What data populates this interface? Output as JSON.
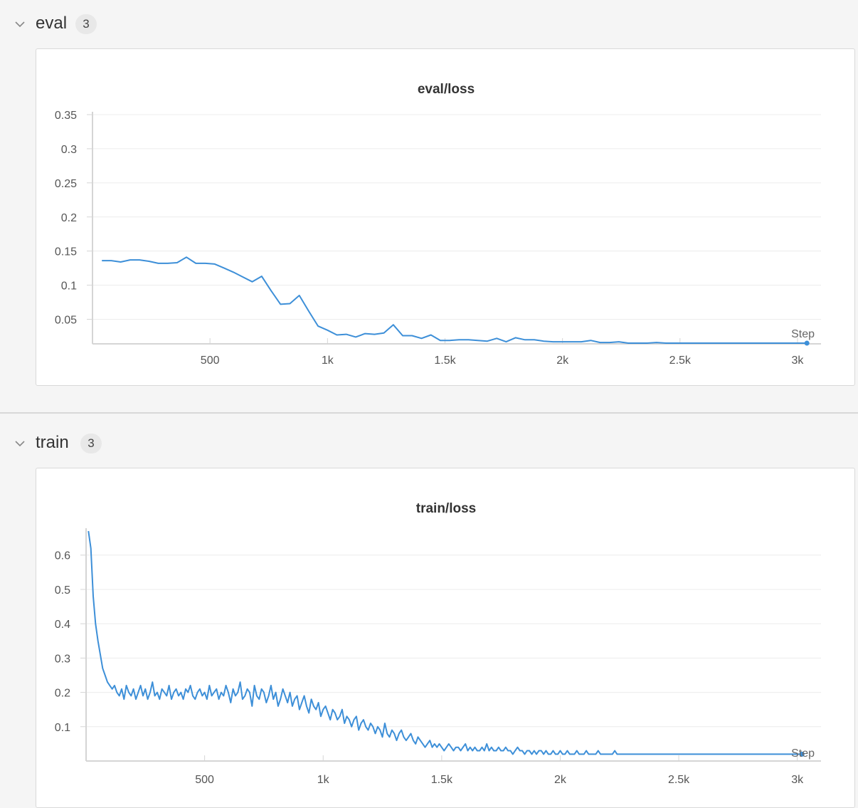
{
  "sections": [
    {
      "title": "eval",
      "count": "3"
    },
    {
      "title": "train",
      "count": "3"
    }
  ],
  "colors": {
    "line": "#3d8fd8",
    "grid": "#ececec",
    "axis": "#d5d5d5"
  },
  "icons": {
    "collapse": "chevron-down-icon"
  },
  "chart_data": [
    {
      "type": "line",
      "title": "eval/loss",
      "xlabel": "Step",
      "ylabel": "",
      "xlim": [
        0,
        3100
      ],
      "ylim": [
        0.014,
        0.35
      ],
      "yticks": [
        0.05,
        0.1,
        0.15,
        0.2,
        0.25,
        0.3,
        0.35
      ],
      "ytick_labels": [
        "0.05",
        "0.1",
        "0.15",
        "0.2",
        "0.25",
        "0.3",
        "0.35"
      ],
      "xticks": [
        500,
        1000,
        1500,
        2000,
        2500,
        3000
      ],
      "xtick_labels": [
        "500",
        "1k",
        "1.5k",
        "2k",
        "2.5k",
        "3k"
      ],
      "grid": true,
      "series": [
        {
          "x": [
            40,
            80,
            120,
            160,
            200,
            240,
            280,
            320,
            360,
            400,
            440,
            480,
            520,
            560,
            600,
            640,
            680,
            720,
            760,
            800,
            840,
            880,
            920,
            960,
            1000,
            1040,
            1080,
            1120,
            1160,
            1200,
            1240,
            1280,
            1320,
            1360,
            1400,
            1440,
            1480,
            1520,
            1560,
            1600,
            1640,
            1680,
            1720,
            1760,
            1800,
            1840,
            1880,
            1920,
            1960,
            2000,
            2040,
            2080,
            2120,
            2160,
            2200,
            2240,
            2280,
            2320,
            2360,
            2400,
            2440,
            2480,
            2520,
            2560,
            2600,
            2640,
            2680,
            2720,
            2760,
            2800,
            2840,
            2880,
            2920,
            2960,
            3000,
            3040
          ],
          "y": [
            0.136,
            0.136,
            0.134,
            0.137,
            0.137,
            0.135,
            0.132,
            0.132,
            0.133,
            0.141,
            0.132,
            0.132,
            0.131,
            0.125,
            0.119,
            0.112,
            0.105,
            0.113,
            0.092,
            0.072,
            0.073,
            0.085,
            0.062,
            0.04,
            0.034,
            0.027,
            0.028,
            0.024,
            0.029,
            0.028,
            0.03,
            0.042,
            0.026,
            0.026,
            0.022,
            0.027,
            0.019,
            0.019,
            0.02,
            0.02,
            0.019,
            0.018,
            0.022,
            0.017,
            0.023,
            0.02,
            0.02,
            0.018,
            0.017,
            0.017,
            0.017,
            0.017,
            0.019,
            0.016,
            0.016,
            0.017,
            0.015,
            0.015,
            0.015,
            0.016,
            0.015,
            0.015,
            0.015,
            0.015,
            0.015,
            0.015,
            0.015,
            0.015,
            0.015,
            0.015,
            0.015,
            0.015,
            0.015,
            0.015,
            0.015,
            0.015
          ]
        }
      ]
    },
    {
      "type": "line",
      "title": "train/loss",
      "xlabel": "Step",
      "ylabel": "",
      "xlim": [
        0,
        3100
      ],
      "ylim": [
        0.0,
        0.67
      ],
      "yticks": [
        0.1,
        0.2,
        0.3,
        0.4,
        0.5,
        0.6
      ],
      "ytick_labels": [
        "0.1",
        "0.2",
        "0.3",
        "0.4",
        "0.5",
        "0.6"
      ],
      "xticks": [
        500,
        1000,
        1500,
        2000,
        2500,
        3000
      ],
      "xtick_labels": [
        "500",
        "1k",
        "1.5k",
        "2k",
        "2.5k",
        "3k"
      ],
      "grid": true,
      "series": [
        {
          "x_start": 10,
          "x_step": 10,
          "y": [
            0.67,
            0.62,
            0.48,
            0.4,
            0.35,
            0.31,
            0.27,
            0.25,
            0.23,
            0.22,
            0.21,
            0.22,
            0.2,
            0.19,
            0.21,
            0.18,
            0.22,
            0.2,
            0.19,
            0.21,
            0.18,
            0.2,
            0.22,
            0.19,
            0.21,
            0.18,
            0.2,
            0.23,
            0.19,
            0.2,
            0.18,
            0.21,
            0.2,
            0.19,
            0.22,
            0.18,
            0.2,
            0.21,
            0.19,
            0.2,
            0.18,
            0.21,
            0.2,
            0.22,
            0.19,
            0.18,
            0.2,
            0.21,
            0.19,
            0.2,
            0.18,
            0.22,
            0.19,
            0.2,
            0.21,
            0.18,
            0.2,
            0.19,
            0.22,
            0.2,
            0.17,
            0.21,
            0.19,
            0.2,
            0.23,
            0.18,
            0.19,
            0.21,
            0.2,
            0.16,
            0.22,
            0.19,
            0.18,
            0.21,
            0.2,
            0.17,
            0.19,
            0.22,
            0.18,
            0.2,
            0.16,
            0.18,
            0.21,
            0.19,
            0.17,
            0.2,
            0.16,
            0.18,
            0.19,
            0.15,
            0.17,
            0.19,
            0.16,
            0.14,
            0.18,
            0.16,
            0.15,
            0.17,
            0.13,
            0.15,
            0.16,
            0.14,
            0.12,
            0.15,
            0.14,
            0.12,
            0.13,
            0.15,
            0.11,
            0.13,
            0.12,
            0.1,
            0.12,
            0.13,
            0.09,
            0.11,
            0.12,
            0.1,
            0.09,
            0.11,
            0.1,
            0.08,
            0.1,
            0.09,
            0.07,
            0.11,
            0.08,
            0.07,
            0.09,
            0.08,
            0.06,
            0.08,
            0.09,
            0.07,
            0.06,
            0.07,
            0.08,
            0.06,
            0.05,
            0.07,
            0.06,
            0.05,
            0.04,
            0.05,
            0.06,
            0.04,
            0.05,
            0.04,
            0.05,
            0.04,
            0.03,
            0.04,
            0.05,
            0.04,
            0.03,
            0.04,
            0.04,
            0.03,
            0.04,
            0.05,
            0.03,
            0.04,
            0.03,
            0.04,
            0.03,
            0.03,
            0.04,
            0.03,
            0.05,
            0.03,
            0.04,
            0.03,
            0.03,
            0.04,
            0.03,
            0.03,
            0.04,
            0.03,
            0.03,
            0.02,
            0.03,
            0.04,
            0.03,
            0.03,
            0.02,
            0.03,
            0.03,
            0.02,
            0.03,
            0.02,
            0.03,
            0.03,
            0.02,
            0.03,
            0.02,
            0.02,
            0.03,
            0.02,
            0.02,
            0.03,
            0.02,
            0.02,
            0.03,
            0.02,
            0.02,
            0.02,
            0.03,
            0.02,
            0.02,
            0.02,
            0.03,
            0.02,
            0.02,
            0.02,
            0.02,
            0.03,
            0.02,
            0.02,
            0.02,
            0.02,
            0.02,
            0.02,
            0.03,
            0.02,
            0.02,
            0.02,
            0.02,
            0.02,
            0.02,
            0.02,
            0.02,
            0.02,
            0.02,
            0.02,
            0.02,
            0.02,
            0.02,
            0.02,
            0.02,
            0.02,
            0.02,
            0.02,
            0.02,
            0.02,
            0.02,
            0.02,
            0.02,
            0.02,
            0.02,
            0.02,
            0.02,
            0.02,
            0.02,
            0.02,
            0.02,
            0.02,
            0.02,
            0.02,
            0.02,
            0.02,
            0.02,
            0.02,
            0.02,
            0.02,
            0.02,
            0.02,
            0.02,
            0.02,
            0.02,
            0.02,
            0.02,
            0.02,
            0.02,
            0.02,
            0.02,
            0.02,
            0.02,
            0.02,
            0.02,
            0.02,
            0.02,
            0.02,
            0.02,
            0.02,
            0.02,
            0.02,
            0.02,
            0.02,
            0.02,
            0.02,
            0.02,
            0.02,
            0.02,
            0.02,
            0.02,
            0.02,
            0.02,
            0.02,
            0.02,
            0.02,
            0.02,
            0.02
          ]
        }
      ]
    }
  ]
}
